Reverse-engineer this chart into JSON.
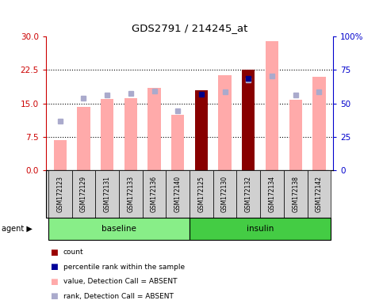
{
  "title": "GDS2791 / 214245_at",
  "samples": [
    "GSM172123",
    "GSM172129",
    "GSM172131",
    "GSM172133",
    "GSM172136",
    "GSM172140",
    "GSM172125",
    "GSM172130",
    "GSM172132",
    "GSM172134",
    "GSM172138",
    "GSM172142"
  ],
  "pink_bars": [
    6.8,
    14.3,
    16.0,
    16.1,
    18.5,
    12.5,
    18.0,
    21.3,
    22.5,
    29.0,
    15.8,
    21.0
  ],
  "light_blue_sq_y": [
    11.0,
    16.2,
    16.8,
    17.2,
    17.8,
    13.3,
    null,
    17.5,
    20.3,
    21.2,
    16.8,
    17.5
  ],
  "dark_red_bars": [
    null,
    null,
    null,
    null,
    null,
    null,
    18.0,
    null,
    22.5,
    null,
    null,
    null
  ],
  "dark_blue_sq_y": [
    null,
    null,
    null,
    null,
    null,
    null,
    17.0,
    null,
    20.6,
    null,
    null,
    null
  ],
  "y_left_ticks": [
    0,
    7.5,
    15.0,
    22.5,
    30
  ],
  "y_right_ticks": [
    0,
    25,
    50,
    75,
    100
  ],
  "left_y_color": "#cc0000",
  "right_y_color": "#0000cc",
  "pink_color": "#ffaaaa",
  "light_blue_color": "#aaaacc",
  "dark_red_color": "#880000",
  "dark_blue_color": "#000088",
  "baseline_color": "#88ee88",
  "insulin_color": "#44cc44",
  "legend_items": [
    {
      "label": "count",
      "color": "#990000"
    },
    {
      "label": "percentile rank within the sample",
      "color": "#000099"
    },
    {
      "label": "value, Detection Call = ABSENT",
      "color": "#ffaaaa"
    },
    {
      "label": "rank, Detection Call = ABSENT",
      "color": "#aaaacc"
    }
  ]
}
